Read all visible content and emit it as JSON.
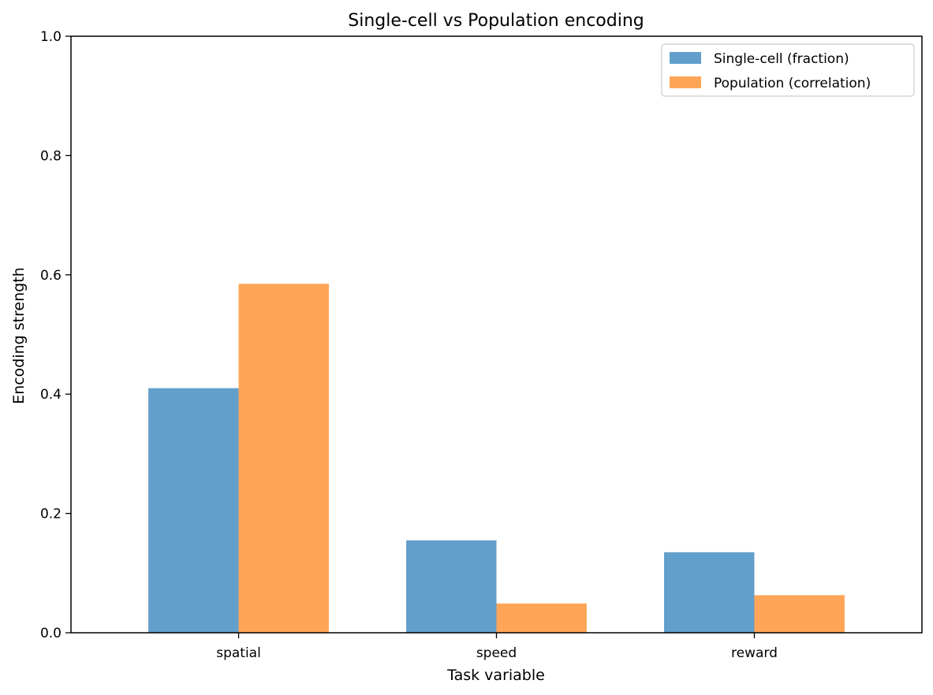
{
  "chart_data": {
    "type": "bar",
    "title": "Single-cell vs Population encoding",
    "xlabel": "Task variable",
    "ylabel": "Encoding strength",
    "categories": [
      "spatial",
      "speed",
      "reward"
    ],
    "series": [
      {
        "name": "Single-cell (fraction)",
        "values": [
          0.41,
          0.155,
          0.135
        ],
        "color": "#629fca"
      },
      {
        "name": "Population (correlation)",
        "values": [
          0.585,
          0.049,
          0.063
        ],
        "color": "#ffa557"
      }
    ],
    "ylim": [
      0,
      1.0
    ],
    "yticks": [
      "0.0",
      "0.2",
      "0.4",
      "0.6",
      "0.8",
      "1.0"
    ],
    "grid": false,
    "legend_position": "top-right"
  }
}
